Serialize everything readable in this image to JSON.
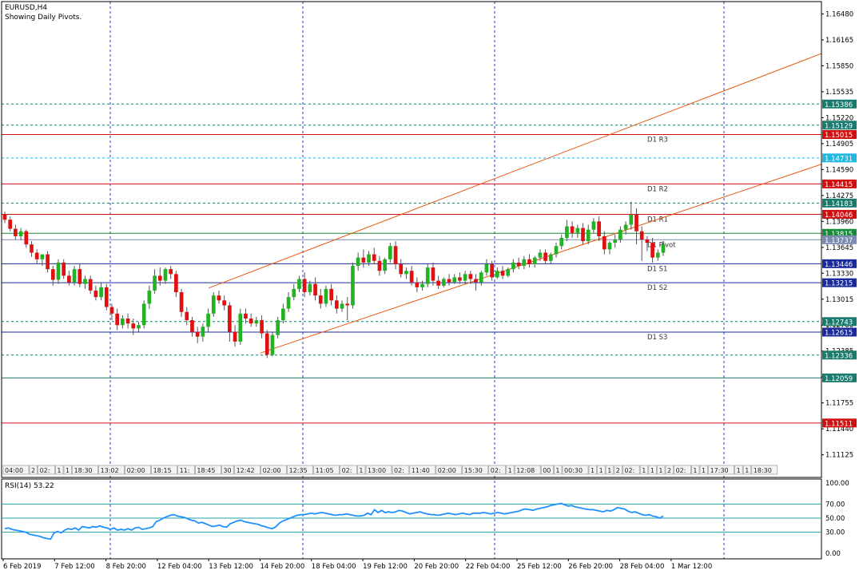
{
  "chart_data": {
    "type": "candlestick",
    "symbol_label": "EURUSD,H4",
    "subtitle": "Showing Daily Pivots.",
    "y_ticks": [
      "1.16480",
      "1.16165",
      "1.15850",
      "1.15535",
      "1.15220",
      "1.14905",
      "1.14590",
      "1.14275",
      "1.13960",
      "1.13645",
      "1.13330",
      "1.13015",
      "1.12700",
      "1.12385",
      "1.12070",
      "1.11755",
      "1.11440",
      "1.11125"
    ],
    "ylim": [
      1.1085,
      1.1663
    ],
    "x_labels": [
      "6 Feb 2019",
      "7 Feb 12:00",
      "8 Feb 20:00",
      "12 Feb 04:00",
      "13 Feb 12:00",
      "14 Feb 20:00",
      "18 Feb 04:00",
      "19 Feb 12:00",
      "20 Feb 20:00",
      "22 Feb 04:00",
      "25 Feb 12:00",
      "26 Feb 20:00",
      "28 Feb 04:00",
      "1 Mar 12:00"
    ],
    "horizontal_levels": [
      {
        "value": "1.15386",
        "style": "dotted",
        "color": "#1a7a6e",
        "label": ""
      },
      {
        "value": "1.15129",
        "style": "dotted",
        "color": "#1a7a6e",
        "label": ""
      },
      {
        "value": "1.15015",
        "style": "solid",
        "color": "#d01010",
        "label": "D1 R3"
      },
      {
        "value": "1.14731",
        "style": "dotted",
        "color": "#22b8e0",
        "label": ""
      },
      {
        "value": "1.14415",
        "style": "solid",
        "color": "#d01010",
        "label": "D1 R2"
      },
      {
        "value": "1.14183",
        "style": "dotted",
        "color": "#1a7a6e",
        "label": ""
      },
      {
        "value": "1.14046",
        "style": "solid",
        "color": "#d01010",
        "label": "D1 R1"
      },
      {
        "value": "1.13815",
        "style": "solid",
        "color": "#1a8a3a",
        "label": ""
      },
      {
        "value": "1.13737",
        "style": "solid",
        "color": "#7a8ab0",
        "label": "D1 Pivot"
      },
      {
        "value": "1.13446",
        "style": "solid",
        "color": "#1a2a9a",
        "label": "D1 S1"
      },
      {
        "value": "1.13215",
        "style": "solid",
        "color": "#1a2a9a",
        "label": "D1 S2"
      },
      {
        "value": "1.12743",
        "style": "dotted",
        "color": "#1a7a6e",
        "label": ""
      },
      {
        "value": "1.12615",
        "style": "solid",
        "color": "#1a2a9a",
        "label": "D1 S3"
      },
      {
        "value": "1.12336",
        "style": "dotted",
        "color": "#1a7a6e",
        "label": ""
      },
      {
        "value": "1.12059",
        "style": "solid",
        "color": "#1a7a6e",
        "label": ""
      },
      {
        "value": "1.11511",
        "style": "solid",
        "color": "#d01010",
        "label": ""
      }
    ],
    "channel_lines": [
      {
        "from": [
          "13 Feb 12:00",
          1.1315
        ],
        "to": [
          "1 Mar 12:00",
          1.153
        ]
      },
      {
        "from": [
          "14 Feb 20:00",
          1.1236
        ],
        "to": [
          "1 Mar 12:00",
          1.1404
        ]
      }
    ],
    "candle_colors": {
      "bull": "#22b322",
      "bear": "#e01010",
      "wick": "#555555"
    },
    "session_markers": [
      "04:00",
      "2",
      "02:",
      "1",
      "1",
      "18:30",
      "13:02",
      "02:00",
      "18:15",
      "11:",
      "18:45",
      "30",
      "12:42",
      "02:00",
      "12:35",
      "11:05",
      "02:",
      "1",
      "13:00",
      "02:",
      "11:40",
      "02:00",
      "15:30",
      "02:",
      "1",
      "12:08",
      "00",
      "1",
      "00:30",
      "1",
      "1",
      "1",
      "2",
      "02:",
      "1",
      "1",
      "1",
      "2",
      "02:",
      "1",
      "1",
      "17:30",
      "1",
      "1",
      "18:30"
    ],
    "rsi": {
      "label": "RSI(14) 53.22",
      "levels": [
        "100.00",
        "70.00",
        "50.00",
        "30.00",
        "0.00"
      ],
      "ylim": [
        0,
        100
      ],
      "values": [
        35,
        36,
        34,
        33,
        32,
        31,
        30,
        27,
        26,
        25,
        24,
        22,
        21,
        20,
        29,
        31,
        29,
        33,
        35,
        34,
        36,
        33,
        38,
        37,
        36,
        38,
        37,
        39,
        37,
        36,
        34,
        36,
        33,
        34,
        33,
        35,
        33,
        36,
        37,
        34,
        35,
        36,
        38,
        45,
        47,
        50,
        52,
        54,
        55,
        53,
        52,
        51,
        49,
        47,
        46,
        43,
        44,
        42,
        40,
        38,
        39,
        40,
        38,
        37,
        42,
        44,
        46,
        47,
        45,
        44,
        43,
        42,
        41,
        39,
        38,
        36,
        35,
        38,
        43,
        46,
        48,
        50,
        52,
        54,
        55,
        55,
        56,
        57,
        56,
        57,
        58,
        57,
        56,
        55,
        54,
        55,
        55,
        56,
        55,
        54,
        53,
        53,
        54,
        57,
        55,
        62,
        58,
        61,
        58,
        59,
        58,
        59,
        61,
        60,
        58,
        56,
        57,
        58,
        59,
        57,
        56,
        55,
        55,
        54,
        55,
        56,
        57,
        56,
        55,
        56,
        57,
        56,
        55,
        57,
        57,
        57,
        58,
        57,
        56,
        57,
        58,
        57,
        56,
        57,
        58,
        59,
        60,
        62,
        63,
        62,
        61,
        63,
        64,
        65,
        66,
        68,
        69,
        70,
        71,
        69,
        67,
        68,
        66,
        65,
        64,
        63,
        62,
        62,
        61,
        60,
        59,
        61,
        60,
        62,
        65,
        64,
        63,
        60,
        58,
        59,
        57,
        55,
        54,
        55,
        53,
        52,
        50,
        53
      ]
    },
    "candles": [
      [
        1.1405,
        1.1408,
        1.1398,
        1.1394
      ],
      [
        1.1398,
        1.1402,
        1.1387,
        1.1384
      ],
      [
        1.1387,
        1.1392,
        1.1378,
        1.1374
      ],
      [
        1.1378,
        1.1388,
        1.1384,
        1.1373
      ],
      [
        1.1384,
        1.1386,
        1.1368,
        1.1364
      ],
      [
        1.1368,
        1.1372,
        1.1358,
        1.1353
      ],
      [
        1.1358,
        1.1362,
        1.135,
        1.1345
      ],
      [
        1.135,
        1.1354,
        1.1356,
        1.1342
      ],
      [
        1.1356,
        1.136,
        1.1338,
        1.1334
      ],
      [
        1.1338,
        1.1342,
        1.1325,
        1.1318
      ],
      [
        1.1325,
        1.135,
        1.1346,
        1.132
      ],
      [
        1.1346,
        1.135,
        1.133,
        1.1326
      ],
      [
        1.133,
        1.1336,
        1.1322,
        1.1318
      ],
      [
        1.1322,
        1.1342,
        1.1338,
        1.1318
      ],
      [
        1.1338,
        1.1345,
        1.132,
        1.1316
      ],
      [
        1.132,
        1.133,
        1.1326,
        1.1314
      ],
      [
        1.1326,
        1.133,
        1.1312,
        1.1308
      ],
      [
        1.1312,
        1.1318,
        1.1304,
        1.13
      ],
      [
        1.1304,
        1.1322,
        1.1316,
        1.13
      ],
      [
        1.1316,
        1.132,
        1.1292,
        1.1288
      ],
      [
        1.1292,
        1.1296,
        1.1284,
        1.1276
      ],
      [
        1.1284,
        1.129,
        1.127,
        1.1264
      ],
      [
        1.127,
        1.1282,
        1.1278,
        1.1266
      ],
      [
        1.1278,
        1.1284,
        1.1272,
        1.1266
      ],
      [
        1.1272,
        1.1278,
        1.1266,
        1.1258
      ],
      [
        1.1266,
        1.1274,
        1.127,
        1.1262
      ],
      [
        1.127,
        1.13,
        1.1296,
        1.1266
      ],
      [
        1.1296,
        1.1318,
        1.1312,
        1.129
      ],
      [
        1.1312,
        1.1338,
        1.133,
        1.1308
      ],
      [
        1.133,
        1.134,
        1.1324,
        1.1318
      ],
      [
        1.1324,
        1.134,
        1.1338,
        1.132
      ],
      [
        1.1338,
        1.1342,
        1.1332,
        1.1326
      ],
      [
        1.1332,
        1.1336,
        1.131,
        1.1304
      ],
      [
        1.131,
        1.1314,
        1.1286,
        1.128
      ],
      [
        1.1286,
        1.1292,
        1.1276,
        1.127
      ],
      [
        1.1276,
        1.128,
        1.1262,
        1.1256
      ],
      [
        1.1262,
        1.1268,
        1.1256,
        1.1248
      ],
      [
        1.1256,
        1.1272,
        1.1268,
        1.125
      ],
      [
        1.1268,
        1.129,
        1.1284,
        1.1262
      ],
      [
        1.1284,
        1.131,
        1.1306,
        1.128
      ],
      [
        1.1306,
        1.1312,
        1.13,
        1.1296
      ],
      [
        1.13,
        1.1306,
        1.1294,
        1.1288
      ],
      [
        1.1294,
        1.1298,
        1.1262,
        1.125
      ],
      [
        1.1262,
        1.127,
        1.125,
        1.1244
      ],
      [
        1.125,
        1.129,
        1.1284,
        1.1246
      ],
      [
        1.1284,
        1.129,
        1.1278,
        1.1272
      ],
      [
        1.1278,
        1.1284,
        1.1272,
        1.1268
      ],
      [
        1.1272,
        1.128,
        1.1276,
        1.1268
      ],
      [
        1.1276,
        1.1282,
        1.126,
        1.1254
      ],
      [
        1.126,
        1.1264,
        1.1234,
        1.123
      ],
      [
        1.1234,
        1.1262,
        1.1258,
        1.1232
      ],
      [
        1.1258,
        1.128,
        1.1276,
        1.1254
      ],
      [
        1.1276,
        1.1296,
        1.129,
        1.1272
      ],
      [
        1.129,
        1.131,
        1.1304,
        1.1286
      ],
      [
        1.1304,
        1.132,
        1.1314,
        1.13
      ],
      [
        1.1314,
        1.133,
        1.1326,
        1.131
      ],
      [
        1.1326,
        1.1334,
        1.131,
        1.1304
      ],
      [
        1.131,
        1.1324,
        1.132,
        1.1306
      ],
      [
        1.132,
        1.1328,
        1.1306,
        1.13
      ],
      [
        1.1306,
        1.1314,
        1.1296,
        1.129
      ],
      [
        1.1296,
        1.1318,
        1.1314,
        1.1292
      ],
      [
        1.1314,
        1.132,
        1.13,
        1.1294
      ],
      [
        1.13,
        1.1306,
        1.129,
        1.1284
      ],
      [
        1.129,
        1.13,
        1.1296,
        1.1286
      ],
      [
        1.1296,
        1.1304,
        1.1294,
        1.1276
      ],
      [
        1.1294,
        1.1346,
        1.1342,
        1.129
      ],
      [
        1.1342,
        1.1358,
        1.1352,
        1.1336
      ],
      [
        1.1352,
        1.1362,
        1.1346,
        1.134
      ],
      [
        1.1346,
        1.136,
        1.1356,
        1.1342
      ],
      [
        1.1356,
        1.1364,
        1.1348,
        1.1344
      ],
      [
        1.1348,
        1.1354,
        1.1336,
        1.133
      ],
      [
        1.1336,
        1.1352,
        1.135,
        1.1332
      ],
      [
        1.135,
        1.137,
        1.1366,
        1.1346
      ],
      [
        1.1366,
        1.1372,
        1.1344,
        1.1338
      ],
      [
        1.1344,
        1.135,
        1.1332,
        1.1328
      ],
      [
        1.1332,
        1.134,
        1.1336,
        1.1326
      ],
      [
        1.1336,
        1.1342,
        1.1322,
        1.1318
      ],
      [
        1.1322,
        1.1328,
        1.1316,
        1.131
      ],
      [
        1.1316,
        1.1324,
        1.132,
        1.1312
      ],
      [
        1.132,
        1.1344,
        1.134,
        1.1316
      ],
      [
        1.134,
        1.1346,
        1.1324,
        1.1318
      ],
      [
        1.1324,
        1.133,
        1.1318,
        1.1314
      ],
      [
        1.1318,
        1.1328,
        1.1326,
        1.1316
      ],
      [
        1.1326,
        1.1332,
        1.1322,
        1.1318
      ],
      [
        1.1322,
        1.1332,
        1.1328,
        1.132
      ],
      [
        1.1328,
        1.1334,
        1.1324,
        1.132
      ],
      [
        1.1324,
        1.1336,
        1.1332,
        1.132
      ],
      [
        1.1332,
        1.1336,
        1.1326,
        1.132
      ],
      [
        1.1326,
        1.1332,
        1.1322,
        1.1312
      ],
      [
        1.1322,
        1.1336,
        1.1334,
        1.1318
      ],
      [
        1.1334,
        1.135,
        1.1344,
        1.133
      ],
      [
        1.1344,
        1.1348,
        1.1328,
        1.1324
      ],
      [
        1.1328,
        1.134,
        1.1336,
        1.1326
      ],
      [
        1.1336,
        1.1342,
        1.133,
        1.1326
      ],
      [
        1.133,
        1.134,
        1.1338,
        1.1328
      ],
      [
        1.1338,
        1.135,
        1.1346,
        1.1334
      ],
      [
        1.1346,
        1.1352,
        1.1342,
        1.1338
      ],
      [
        1.1342,
        1.1354,
        1.135,
        1.1338
      ],
      [
        1.135,
        1.1356,
        1.1344,
        1.134
      ],
      [
        1.1344,
        1.1354,
        1.1352,
        1.134
      ],
      [
        1.1352,
        1.1362,
        1.1358,
        1.1348
      ],
      [
        1.1358,
        1.1362,
        1.1348,
        1.1344
      ],
      [
        1.1348,
        1.1358,
        1.1356,
        1.1344
      ],
      [
        1.1356,
        1.137,
        1.1366,
        1.1352
      ],
      [
        1.1366,
        1.138,
        1.1376,
        1.1362
      ],
      [
        1.1376,
        1.1398,
        1.139,
        1.1372
      ],
      [
        1.139,
        1.1396,
        1.1382,
        1.1376
      ],
      [
        1.1382,
        1.1392,
        1.1388,
        1.1376
      ],
      [
        1.1388,
        1.1394,
        1.1372,
        1.1368
      ],
      [
        1.1372,
        1.1392,
        1.1386,
        1.1368
      ],
      [
        1.1386,
        1.14,
        1.1396,
        1.1382
      ],
      [
        1.1396,
        1.1402,
        1.1378,
        1.1372
      ],
      [
        1.1378,
        1.1384,
        1.1362,
        1.1356
      ],
      [
        1.1362,
        1.1372,
        1.137,
        1.1356
      ],
      [
        1.137,
        1.138,
        1.1374,
        1.1364
      ],
      [
        1.1374,
        1.139,
        1.1386,
        1.137
      ],
      [
        1.1386,
        1.1396,
        1.1392,
        1.138
      ],
      [
        1.1392,
        1.142,
        1.1404,
        1.1386
      ],
      [
        1.1404,
        1.1412,
        1.1384,
        1.1368
      ],
      [
        1.1384,
        1.139,
        1.1374,
        1.1348
      ],
      [
        1.1374,
        1.1378,
        1.137,
        1.136
      ],
      [
        1.137,
        1.1376,
        1.1352,
        1.1346
      ],
      [
        1.1352,
        1.1362,
        1.1358,
        1.1348
      ],
      [
        1.1358,
        1.1372,
        1.1368,
        1.1354
      ]
    ]
  }
}
